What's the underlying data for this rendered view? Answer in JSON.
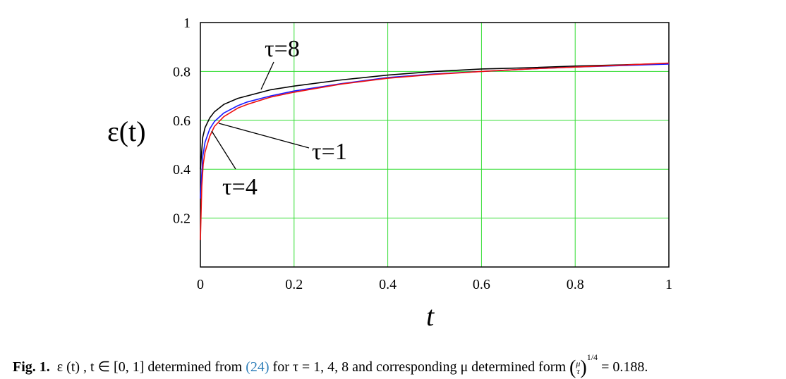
{
  "chart_data": {
    "type": "line",
    "xlim": [
      0,
      1
    ],
    "ylim": [
      0,
      1
    ],
    "xlabel": "t",
    "ylabel": "ε(t)",
    "xticks": [
      "0",
      "0.2",
      "0.4",
      "0.6",
      "0.8",
      "1"
    ],
    "yticks": [
      "0.2",
      "0.4",
      "0.6",
      "0.8",
      "1"
    ],
    "grid": true,
    "grid_color": "#33dd33",
    "series": [
      {
        "name": "τ=8",
        "color": "#000000",
        "x": [
          0,
          0.005,
          0.01,
          0.02,
          0.03,
          0.05,
          0.08,
          0.1,
          0.15,
          0.2,
          0.3,
          0.4,
          0.5,
          0.6,
          0.7,
          0.8,
          0.9,
          1.0
        ],
        "y": [
          0.4,
          0.53,
          0.57,
          0.61,
          0.635,
          0.665,
          0.69,
          0.7,
          0.725,
          0.74,
          0.765,
          0.785,
          0.8,
          0.81,
          0.815,
          0.822,
          0.827,
          0.832
        ]
      },
      {
        "name": "τ=1",
        "color": "#1a1aff",
        "x": [
          0,
          0.005,
          0.01,
          0.02,
          0.03,
          0.05,
          0.08,
          0.1,
          0.15,
          0.2,
          0.3,
          0.4,
          0.5,
          0.6,
          0.7,
          0.8,
          0.9,
          1.0
        ],
        "y": [
          0.28,
          0.45,
          0.51,
          0.565,
          0.595,
          0.63,
          0.66,
          0.675,
          0.7,
          0.72,
          0.75,
          0.775,
          0.79,
          0.8,
          0.81,
          0.818,
          0.824,
          0.83
        ]
      },
      {
        "name": "τ=4",
        "color": "#ee1111",
        "x": [
          0,
          0.003,
          0.006,
          0.01,
          0.02,
          0.03,
          0.05,
          0.08,
          0.1,
          0.15,
          0.2,
          0.3,
          0.4,
          0.5,
          0.6,
          0.7,
          0.8,
          0.9,
          1.0
        ],
        "y": [
          0.11,
          0.33,
          0.42,
          0.47,
          0.535,
          0.575,
          0.615,
          0.65,
          0.665,
          0.695,
          0.715,
          0.748,
          0.772,
          0.788,
          0.8,
          0.81,
          0.818,
          0.826,
          0.834
        ]
      }
    ],
    "annotations": [
      "τ=8",
      "τ=1",
      "τ=4"
    ]
  },
  "caption": {
    "fig_label": "Fig. 1.",
    "part1": "ε (t) , t ∈ [0, 1] determined from",
    "ref": "(24)",
    "part2": "for τ = 1, 4, 8 and corresponding μ determined form",
    "frac_num": "μ",
    "frac_den": "τ",
    "exponent": "1/4",
    "part3": "= 0.188."
  }
}
